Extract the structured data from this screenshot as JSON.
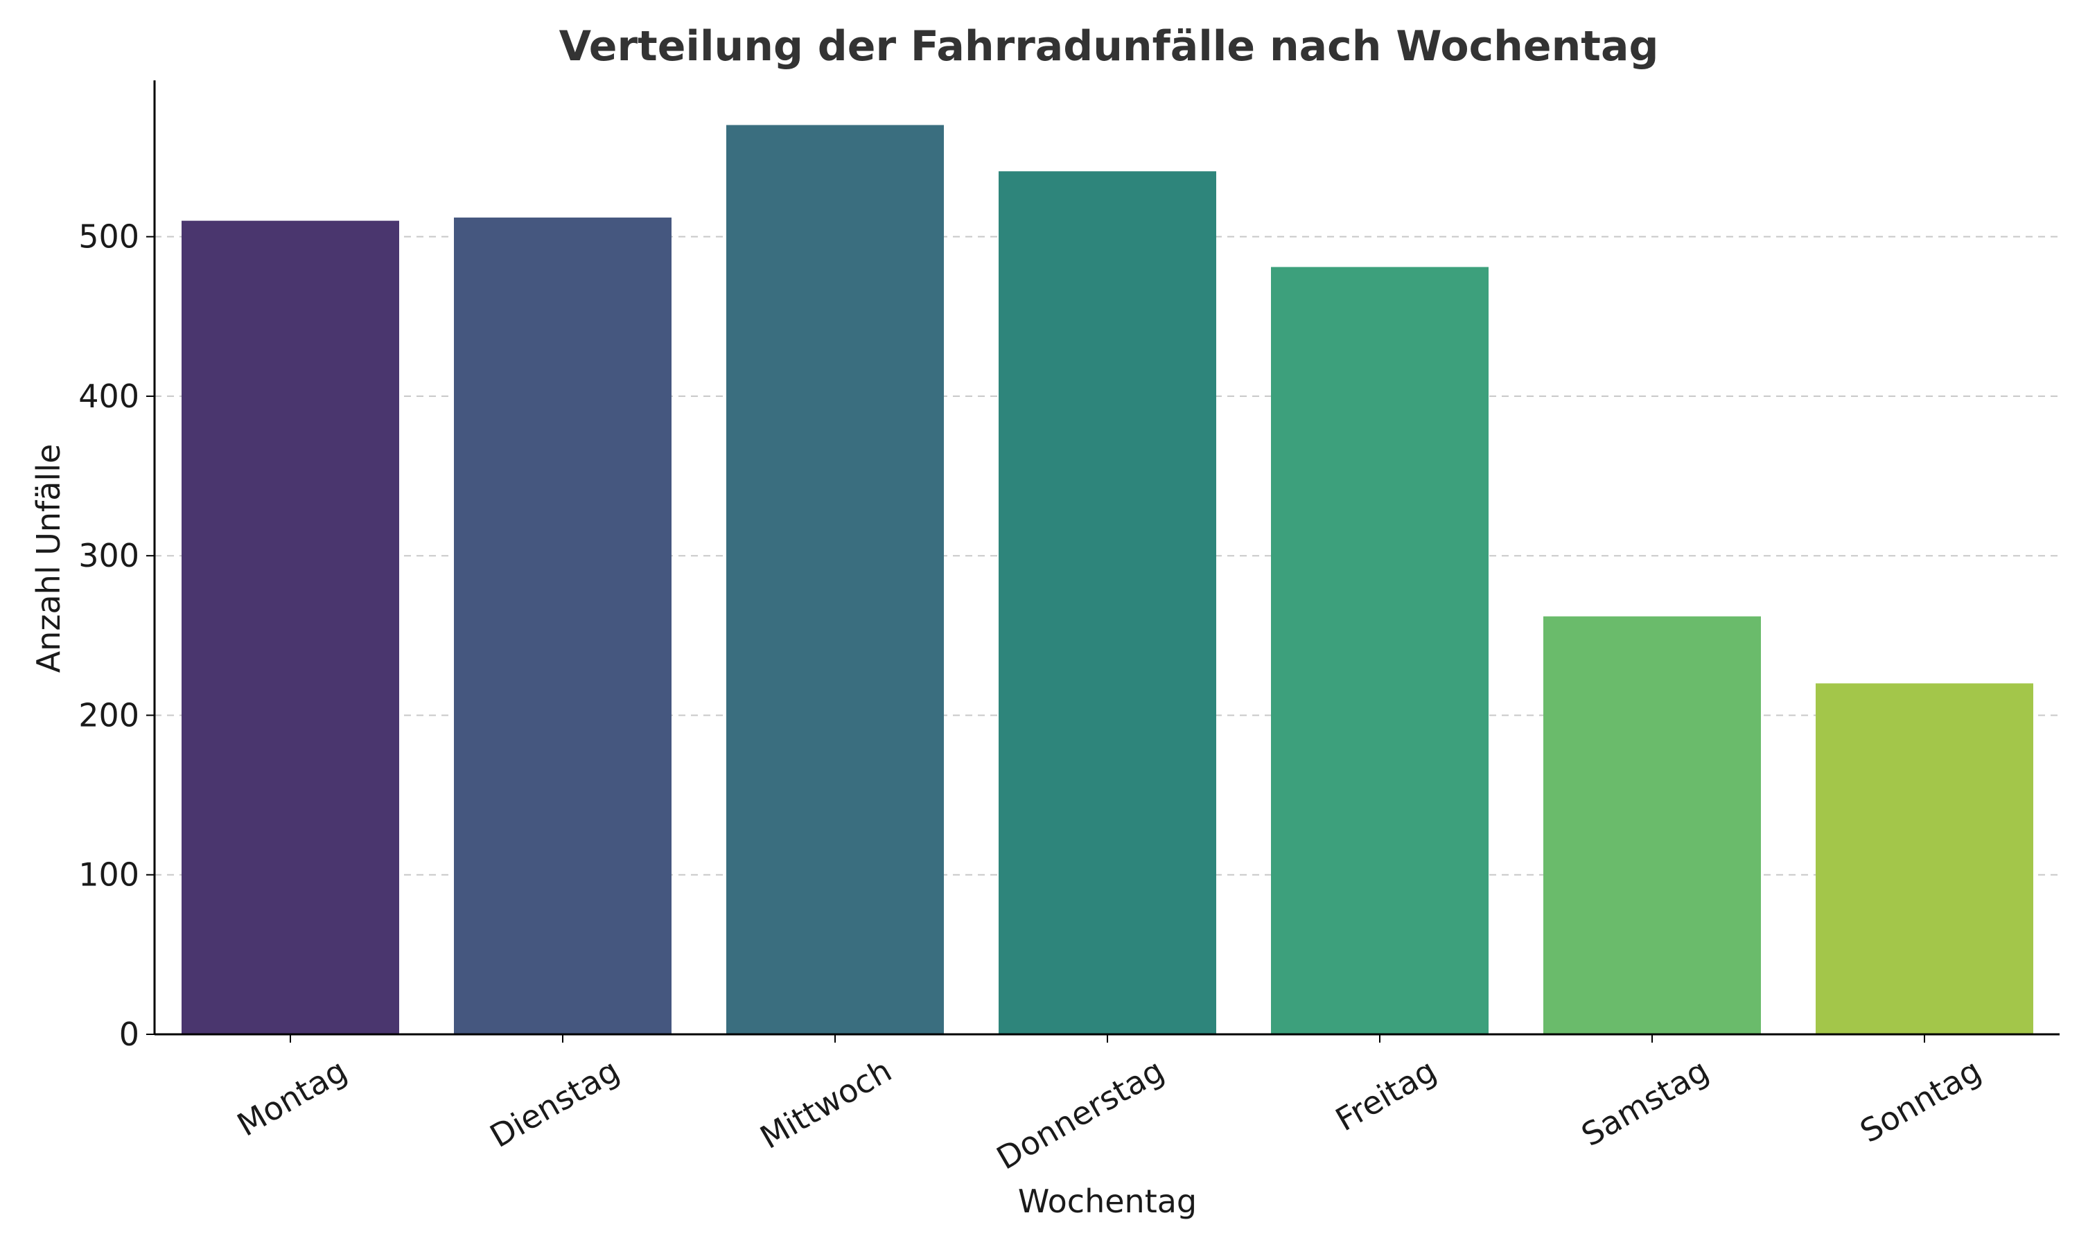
{
  "chart_data": {
    "type": "bar",
    "title": "Verteilung der Fahrradunfälle nach Wochentag",
    "xlabel": "Wochentag",
    "ylabel": "Anzahl Unfälle",
    "categories": [
      "Montag",
      "Dienstag",
      "Mittwoch",
      "Donnerstag",
      "Freitag",
      "Samstag",
      "Sonntag"
    ],
    "values": [
      510,
      512,
      570,
      541,
      481,
      262,
      220
    ],
    "colors": [
      "#4a366e",
      "#45577f",
      "#3a6e7f",
      "#2e857b",
      "#3da07c",
      "#6abb6b",
      "#a3c64a"
    ],
    "ylim": [
      0,
      598
    ],
    "yticks": [
      0,
      100,
      200,
      300,
      400,
      500
    ],
    "grid": "y",
    "legend": "none"
  }
}
